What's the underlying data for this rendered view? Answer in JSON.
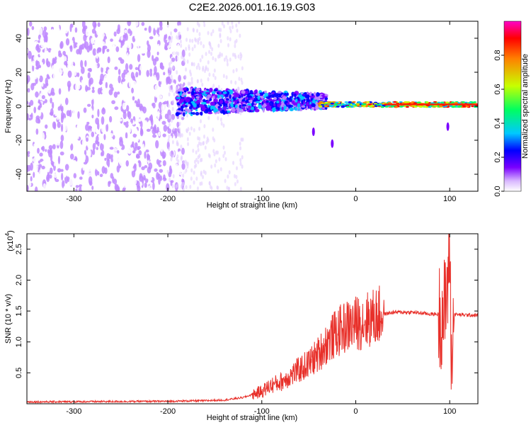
{
  "figure": {
    "title": "C2E2.2026.001.16.19.G03"
  },
  "chart_data": [
    {
      "type": "heatmap",
      "xlabel": "Height of straight line (km)",
      "ylabel": "Frequency (Hz)",
      "xlim": [
        -350,
        130
      ],
      "ylim": [
        -50,
        50
      ],
      "xticks": [
        -300,
        -200,
        -100,
        0,
        100
      ],
      "yticks": [
        -40,
        -20,
        0,
        20,
        40
      ],
      "colorbar": {
        "label": "Normalized spectral amplitude",
        "range": [
          0,
          1
        ],
        "ticks": [
          "0.0",
          "0.2",
          "0.4",
          "0.6",
          "0.8"
        ],
        "colormap": [
          "#ffffff",
          "#c08aff",
          "#7a00ff",
          "#0000ff",
          "#00c8ff",
          "#00ff60",
          "#c8ff00",
          "#ff8000",
          "#ff0000",
          "#ff00c8"
        ]
      },
      "description_regions": [
        {
          "x_range": [
            -350,
            -180
          ],
          "freq_range": [
            -50,
            50
          ],
          "amplitude": "0.05-0.3"
        },
        {
          "x_range": [
            -190,
            -40
          ],
          "freq_range": [
            -10,
            15
          ],
          "amplitude": "0.2-0.6"
        },
        {
          "x_range": [
            -40,
            130
          ],
          "freq_range": [
            -3,
            4
          ],
          "amplitude": "0.6-1.0"
        }
      ]
    },
    {
      "type": "line",
      "xlabel": "Height of straight line (km)",
      "ylabel": "SNR (10 * v/v)",
      "multiplier_label": "(x10",
      "multiplier_exp": "4",
      "xlim": [
        -350,
        130
      ],
      "ylim": [
        0,
        2.75
      ],
      "xticks": [
        -300,
        -200,
        -100,
        0,
        100
      ],
      "yticks": [
        "0.5",
        "1.0",
        "1.5",
        "2.0",
        "2.5"
      ],
      "series": [
        {
          "color": "#e8302a",
          "x": [
            -350,
            -200,
            -160,
            -140,
            -120,
            -100,
            -90,
            -80,
            -70,
            -60,
            -50,
            -40,
            -30,
            -20,
            -10,
            0,
            10,
            20,
            30,
            40,
            60,
            80,
            90,
            95,
            98,
            100,
            102,
            105,
            110,
            130
          ],
          "y": [
            0.03,
            0.04,
            0.05,
            0.06,
            0.1,
            0.2,
            0.3,
            0.35,
            0.45,
            0.55,
            0.65,
            0.8,
            1.0,
            1.15,
            1.25,
            1.3,
            1.35,
            1.4,
            1.45,
            1.48,
            1.48,
            1.45,
            1.45,
            1.5,
            2.0,
            2.7,
            0.5,
            1.45,
            1.44,
            1.43
          ]
        }
      ]
    }
  ]
}
